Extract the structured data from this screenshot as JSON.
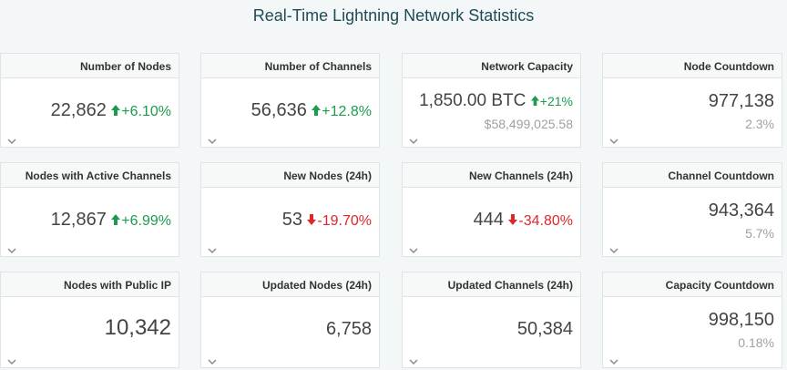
{
  "page": {
    "title": "Real-Time Lightning Network Statistics"
  },
  "cards": [
    {
      "label": "Number of Nodes",
      "value": "22,862",
      "change": "+6.10%",
      "direction": "up"
    },
    {
      "label": "Number of Channels",
      "value": "56,636",
      "change": "+12.8%",
      "direction": "up"
    },
    {
      "label": "Network Capacity",
      "value": "1,850.00 BTC",
      "change": "+21%",
      "direction": "up",
      "sub": "$58,499,025.58"
    },
    {
      "label": "Node Countdown",
      "value": "977,138",
      "sub": "2.3%"
    },
    {
      "label": "Nodes with Active Channels",
      "value": "12,867",
      "change": "+6.99%",
      "direction": "up"
    },
    {
      "label": "New Nodes (24h)",
      "value": "53",
      "change": "-19.70%",
      "direction": "down"
    },
    {
      "label": "New Channels (24h)",
      "value": "444",
      "change": "-34.80%",
      "direction": "down"
    },
    {
      "label": "Channel Countdown",
      "value": "943,364",
      "sub": "5.7%"
    },
    {
      "label": "Nodes with Public IP",
      "value": "10,342"
    },
    {
      "label": "Updated Nodes (24h)",
      "value": "6,758"
    },
    {
      "label": "Updated Channels (24h)",
      "value": "50,384"
    },
    {
      "label": "Capacity Countdown",
      "value": "998,150",
      "sub": "0.18%"
    }
  ],
  "colors": {
    "up": "#1c9b4e",
    "down": "#e0262b",
    "title": "#1f4b57"
  },
  "icons": {
    "up": "arrow-up-icon",
    "down": "arrow-down-icon",
    "expand": "chevron-down-icon"
  }
}
